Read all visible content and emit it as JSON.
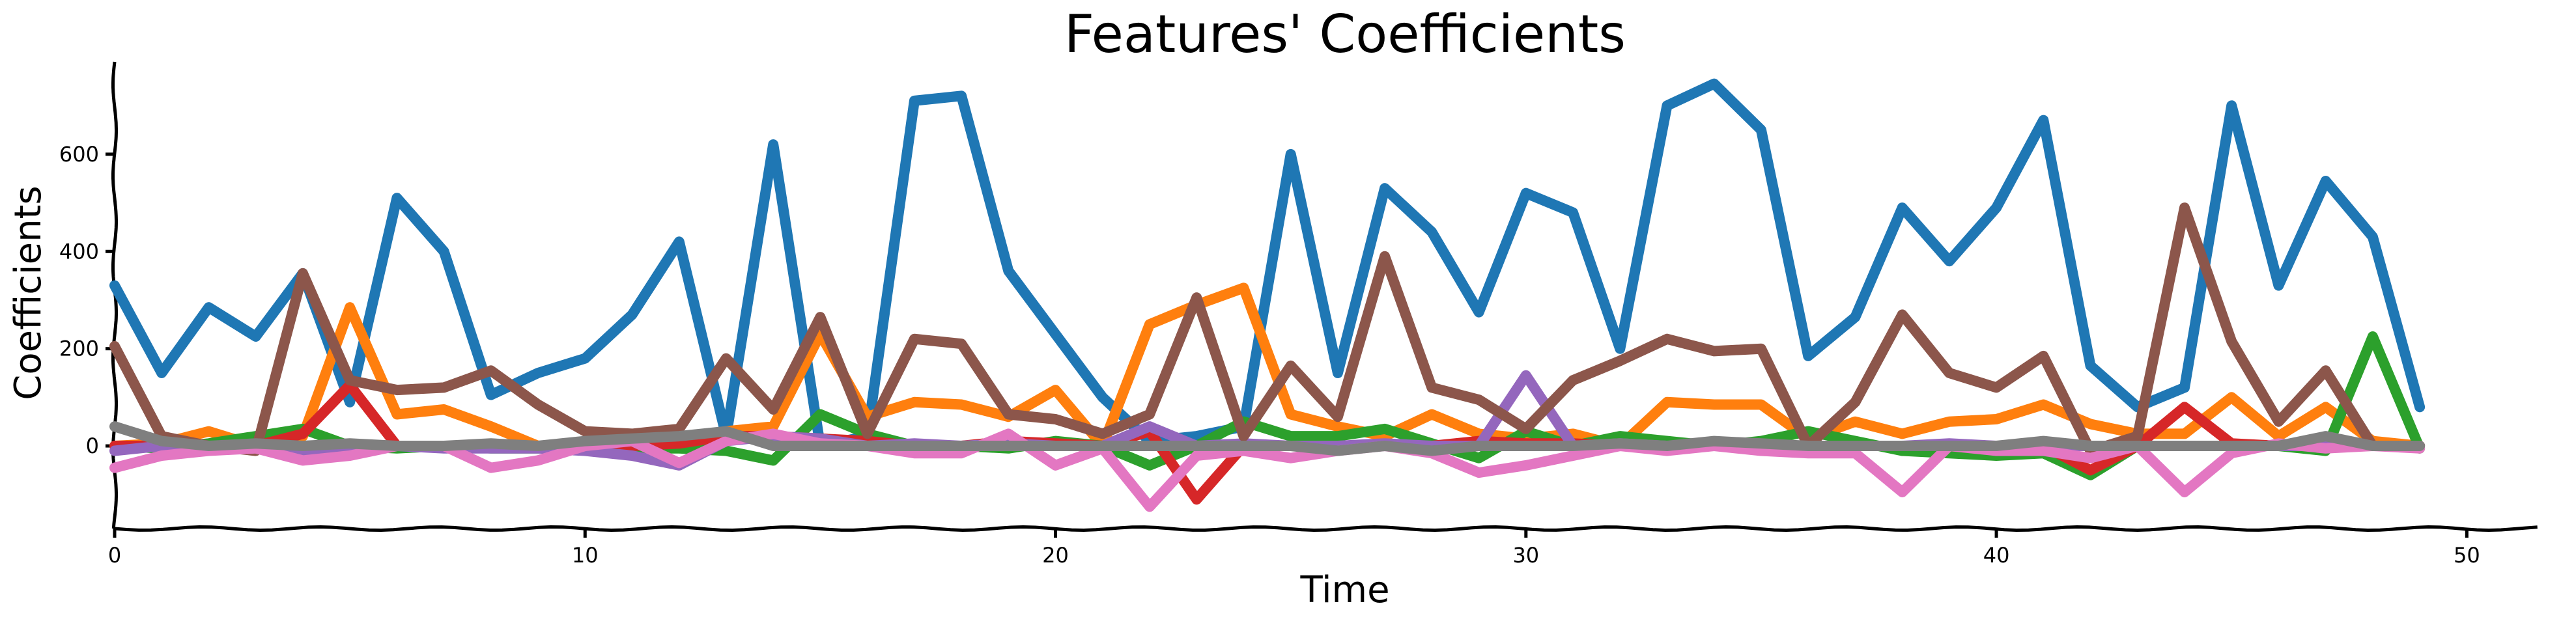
{
  "chart_data": {
    "type": "line",
    "title": "Features' Coefficients",
    "xlabel": "Time",
    "ylabel": "Coefficients",
    "xlim": [
      0,
      51.5
    ],
    "ylim": [
      -170,
      790
    ],
    "xticks": [
      0,
      10,
      20,
      30,
      40,
      50
    ],
    "yticks": [
      0,
      200,
      400,
      600
    ],
    "grid": false,
    "legend": "none",
    "x": [
      0,
      1,
      2,
      3,
      4,
      5,
      6,
      7,
      8,
      9,
      10,
      11,
      12,
      13,
      14,
      15,
      16,
      17,
      18,
      19,
      20,
      21,
      22,
      23,
      24,
      25,
      26,
      27,
      28,
      29,
      30,
      31,
      32,
      33,
      34,
      35,
      36,
      37,
      38,
      39,
      40,
      41,
      42,
      43,
      44,
      45,
      46,
      47,
      48,
      49
    ],
    "series": [
      {
        "color": "#1f77b4",
        "values": [
          330,
          150,
          285,
          225,
          355,
          90,
          510,
          400,
          105,
          150,
          180,
          270,
          420,
          20,
          620,
          0,
          20,
          710,
          720,
          360,
          230,
          100,
          10,
          20,
          40,
          600,
          150,
          530,
          440,
          275,
          520,
          480,
          200,
          700,
          745,
          650,
          185,
          265,
          490,
          380,
          490,
          670,
          165,
          80,
          120,
          700,
          330,
          545,
          430,
          80
        ]
      },
      {
        "color": "#ff7f0e",
        "values": [
          0,
          5,
          30,
          0,
          20,
          285,
          65,
          75,
          40,
          0,
          0,
          10,
          15,
          30,
          40,
          230,
          60,
          90,
          85,
          60,
          115,
          0,
          250,
          290,
          325,
          65,
          40,
          20,
          65,
          25,
          15,
          25,
          0,
          90,
          85,
          85,
          15,
          50,
          25,
          50,
          55,
          85,
          45,
          25,
          25,
          100,
          20,
          80,
          10,
          0
        ]
      },
      {
        "color": "#2ca02c",
        "values": [
          0,
          -5,
          5,
          20,
          35,
          0,
          -5,
          0,
          -5,
          -5,
          0,
          -5,
          -5,
          -10,
          -30,
          65,
          25,
          0,
          0,
          -5,
          10,
          0,
          -40,
          0,
          50,
          20,
          20,
          35,
          5,
          -25,
          30,
          0,
          20,
          10,
          0,
          10,
          30,
          10,
          -10,
          -15,
          -20,
          -15,
          -60,
          0,
          0,
          0,
          0,
          -10,
          225,
          -5
        ]
      },
      {
        "color": "#d62728",
        "values": [
          0,
          0,
          0,
          0,
          25,
          125,
          0,
          0,
          0,
          0,
          0,
          0,
          5,
          20,
          20,
          15,
          10,
          0,
          0,
          10,
          5,
          0,
          30,
          -110,
          0,
          0,
          0,
          0,
          0,
          10,
          5,
          5,
          0,
          0,
          0,
          0,
          0,
          0,
          0,
          0,
          0,
          0,
          -50,
          0,
          80,
          5,
          0,
          0,
          0,
          0
        ]
      },
      {
        "color": "#9467bd",
        "values": [
          -10,
          0,
          0,
          -5,
          -10,
          -5,
          0,
          -5,
          -5,
          -5,
          -10,
          -20,
          -40,
          10,
          20,
          15,
          0,
          5,
          0,
          5,
          0,
          0,
          40,
          0,
          5,
          0,
          0,
          5,
          0,
          0,
          145,
          0,
          5,
          0,
          0,
          0,
          0,
          0,
          0,
          5,
          0,
          0,
          0,
          0,
          0,
          0,
          0,
          0,
          0,
          0
        ]
      },
      {
        "color": "#8c564b",
        "values": [
          205,
          20,
          0,
          -10,
          355,
          135,
          115,
          120,
          155,
          85,
          30,
          25,
          35,
          180,
          75,
          265,
          25,
          220,
          210,
          65,
          55,
          25,
          65,
          305,
          20,
          165,
          60,
          390,
          120,
          95,
          35,
          135,
          175,
          220,
          195,
          200,
          0,
          90,
          270,
          150,
          120,
          185,
          -10,
          20,
          490,
          215,
          50,
          155,
          0,
          0
        ]
      },
      {
        "color": "#e377c2",
        "values": [
          -45,
          -20,
          -10,
          -5,
          -30,
          -20,
          0,
          0,
          -45,
          -30,
          0,
          10,
          -35,
          10,
          25,
          5,
          0,
          -15,
          -15,
          25,
          -40,
          -5,
          -125,
          -20,
          -10,
          -25,
          -10,
          0,
          -15,
          -55,
          -40,
          -20,
          0,
          -10,
          0,
          -10,
          -15,
          -15,
          -95,
          0,
          -10,
          -10,
          -25,
          0,
          -95,
          -15,
          5,
          -5,
          0,
          -5
        ]
      },
      {
        "color": "#7f7f7f",
        "values": [
          40,
          10,
          0,
          5,
          0,
          5,
          0,
          0,
          5,
          0,
          10,
          15,
          20,
          30,
          0,
          0,
          0,
          0,
          0,
          0,
          0,
          0,
          0,
          0,
          0,
          0,
          -10,
          0,
          -10,
          0,
          0,
          0,
          5,
          0,
          10,
          5,
          0,
          0,
          0,
          0,
          0,
          10,
          0,
          0,
          0,
          0,
          0,
          20,
          0,
          0
        ]
      }
    ]
  }
}
